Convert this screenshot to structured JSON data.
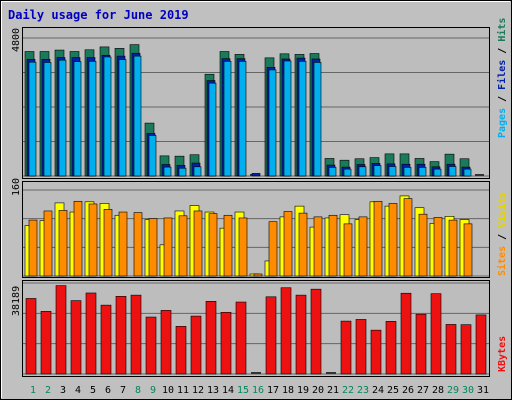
{
  "colors": {
    "background": "#c0c0c0",
    "plot_background": "#bdbdbd",
    "title": "#0000c0",
    "hits": "#1b7a5c",
    "files": "#0022aa",
    "pages": "#00b0ee",
    "visits": "#ffff00",
    "sites": "#ff8c00",
    "kbytes": "#ee1111",
    "weekend_day": "#00885a",
    "weekday": "#000000",
    "gridline": "#666666"
  },
  "chart_data": {
    "type": "bar",
    "title": "Daily usage for June 2019",
    "categories": [
      "1",
      "2",
      "3",
      "4",
      "5",
      "6",
      "7",
      "8",
      "9",
      "10",
      "11",
      "12",
      "13",
      "14",
      "15",
      "16",
      "17",
      "18",
      "19",
      "20",
      "21",
      "22",
      "23",
      "24",
      "25",
      "26",
      "27",
      "28",
      "29",
      "30",
      "31"
    ],
    "weekend_days": [
      "1",
      "2",
      "8",
      "9",
      "15",
      "16",
      "22",
      "23",
      "29",
      "30"
    ],
    "panels": [
      {
        "name": "requests",
        "ymax_label": "4800",
        "ylim": [
          0,
          4800
        ],
        "axis_label_parts": [
          "Pages",
          "Files",
          "Hits"
        ],
        "series": [
          {
            "name": "Hits",
            "values": [
              4330,
              4330,
              4380,
              4330,
              4390,
              4490,
              4440,
              4570,
              1840,
              700,
              690,
              740,
              3540,
              4330,
              4230,
              0,
              4110,
              4250,
              4230,
              4260,
              610,
              550,
              600,
              640,
              770,
              770,
              610,
              500,
              760,
              600,
              0
            ]
          },
          {
            "name": "Files",
            "values": [
              4060,
              4060,
              4120,
              4120,
              4120,
              4200,
              4170,
              4270,
              1480,
              400,
              370,
              450,
              3320,
              4080,
              4080,
              90,
              3780,
              4070,
              4100,
              4070,
              380,
              310,
              400,
              440,
              420,
              410,
              410,
              320,
              410,
              310,
              0
            ]
          },
          {
            "name": "Pages",
            "values": [
              3960,
              3950,
              4030,
              3980,
              3990,
              4140,
              4050,
              4170,
              1410,
              310,
              270,
              320,
              3230,
              3990,
              3990,
              0,
              3690,
              4000,
              3990,
              3950,
              300,
              240,
              320,
              360,
              330,
              300,
              300,
              240,
              330,
              240,
              0
            ]
          }
        ]
      },
      {
        "name": "visits",
        "ymax_label": "160",
        "ylim": [
          0,
          160
        ],
        "axis_label_parts": [
          "Sites",
          "Visits"
        ],
        "series": [
          {
            "name": "Visits",
            "values": [
              94,
              103,
              136,
              119,
              138,
              135,
              113,
              0,
              105,
              58,
              121,
              131,
              119,
              89,
              119,
              2,
              28,
              110,
              130,
              91,
              108,
              114,
              105,
              138,
              130,
              149,
              127,
              98,
              111,
              105,
              0
            ]
          },
          {
            "name": "Sites",
            "values": [
              104,
              121,
              122,
              139,
              134,
              124,
              119,
              118,
              107,
              108,
              112,
              121,
              116,
              113,
              108,
              2,
              101,
              120,
              117,
              110,
              113,
              97,
              110,
              139,
              135,
              144,
              115,
              109,
              104,
              97,
              0
            ]
          }
        ]
      },
      {
        "name": "kbytes",
        "ymax_label": "38189",
        "ylim": [
          0,
          38189
        ],
        "axis_label_parts": [
          "KBytes"
        ],
        "series": [
          {
            "name": "KBytes",
            "values": [
              31700,
              26300,
              37100,
              30800,
              34000,
              28900,
              32600,
              33100,
              23900,
              26700,
              20000,
              24300,
              30500,
              25900,
              30200,
              0,
              32400,
              36200,
              33100,
              35600,
              0,
              22200,
              22900,
              18400,
              22100,
              33900,
              25100,
              33700,
              20800,
              20700,
              24800
            ]
          }
        ]
      }
    ]
  }
}
